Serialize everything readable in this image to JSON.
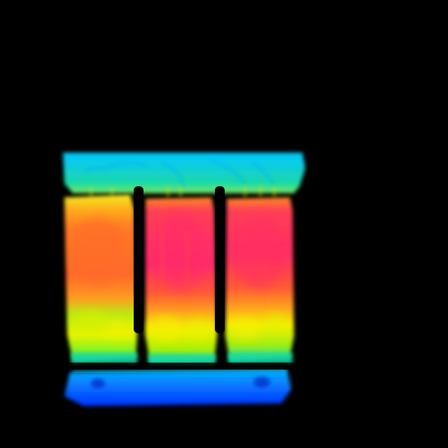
{
  "image": {
    "subject": "thermal-image-three-phase-transformer",
    "background_color": "#000000",
    "palette": {
      "coldest": "#0033ff",
      "cold": "#00c8ff",
      "cool": "#19d9a6",
      "mild": "#a8f000",
      "warm": "#f0f000",
      "hot": "#ff8a1f",
      "hotter": "#ff5a35",
      "hottest": "#ff2a6a"
    },
    "coils": [
      {
        "name": "left",
        "peak": "hotter"
      },
      {
        "name": "center",
        "peak": "hottest"
      },
      {
        "name": "right",
        "peak": "hottest"
      }
    ]
  }
}
